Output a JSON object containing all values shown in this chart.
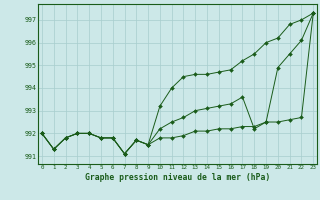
{
  "x": [
    0,
    1,
    2,
    3,
    4,
    5,
    6,
    7,
    8,
    9,
    10,
    11,
    12,
    13,
    14,
    15,
    16,
    17,
    18,
    19,
    20,
    21,
    22,
    23
  ],
  "line1": [
    992.0,
    991.3,
    991.8,
    992.0,
    992.0,
    991.8,
    991.8,
    991.1,
    991.7,
    991.5,
    991.8,
    991.8,
    991.9,
    992.1,
    992.1,
    992.2,
    992.2,
    992.3,
    992.3,
    992.5,
    992.5,
    992.6,
    992.7,
    997.3
  ],
  "line2": [
    992.0,
    991.3,
    991.8,
    992.0,
    992.0,
    991.8,
    991.8,
    991.1,
    991.7,
    991.5,
    992.2,
    992.5,
    992.7,
    993.0,
    993.1,
    993.2,
    993.3,
    993.6,
    992.2,
    992.5,
    994.9,
    995.5,
    996.1,
    997.3
  ],
  "line3": [
    992.0,
    991.3,
    991.8,
    992.0,
    992.0,
    991.8,
    991.8,
    991.1,
    991.7,
    991.5,
    993.2,
    994.0,
    994.5,
    994.6,
    994.6,
    994.7,
    994.8,
    995.2,
    995.5,
    996.0,
    996.2,
    996.8,
    997.0,
    997.3
  ],
  "line_color": "#1a5c1a",
  "background_color": "#cce8e8",
  "grid_color": "#a8cece",
  "ylabel_ticks": [
    991,
    992,
    993,
    994,
    995,
    996,
    997
  ],
  "xlabel_label": "Graphe pression niveau de la mer (hPa)",
  "ylim": [
    990.65,
    997.7
  ],
  "xlim": [
    -0.3,
    23.3
  ]
}
